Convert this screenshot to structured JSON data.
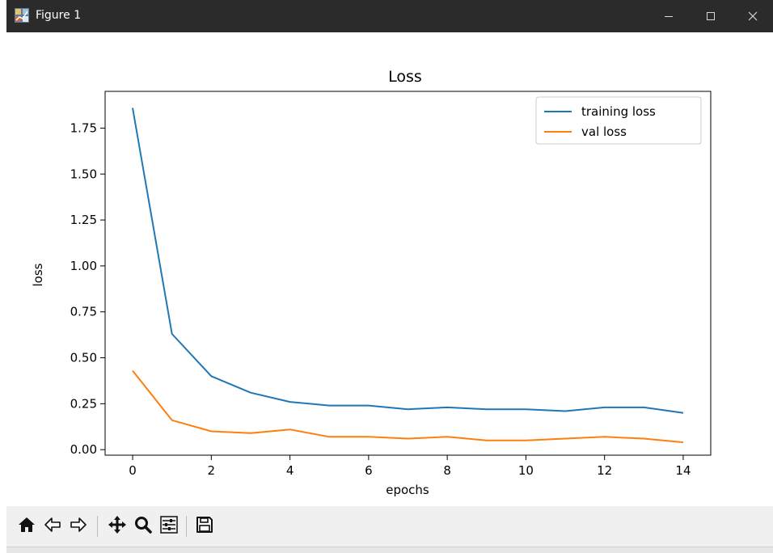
{
  "window": {
    "title": "Figure 1",
    "icon": "matplotlib-figure-icon",
    "controls": [
      "minimize-icon",
      "maximize-icon",
      "close-icon"
    ],
    "titlebar_color": "#2b2b2b"
  },
  "toolbar": {
    "buttons": [
      "home-icon",
      "back-icon",
      "forward-icon",
      "pan-icon",
      "zoom-icon",
      "configure-subplots-icon",
      "save-icon"
    ]
  },
  "chart_data": {
    "type": "line",
    "title": "Loss",
    "xlabel": "epochs",
    "ylabel": "loss",
    "xlim": [
      -0.7,
      14.7
    ],
    "ylim": [
      -0.03,
      1.95
    ],
    "xticks": [
      0,
      2,
      4,
      6,
      8,
      10,
      12,
      14
    ],
    "xtick_labels": [
      "0",
      "2",
      "4",
      "6",
      "8",
      "10",
      "12",
      "14"
    ],
    "yticks": [
      0.0,
      0.25,
      0.5,
      0.75,
      1.0,
      1.25,
      1.5,
      1.75
    ],
    "ytick_labels": [
      "0.00",
      "0.25",
      "0.50",
      "0.75",
      "1.00",
      "1.25",
      "1.50",
      "1.75"
    ],
    "grid": false,
    "legend": "top-right",
    "x": [
      0,
      1,
      2,
      3,
      4,
      5,
      6,
      7,
      8,
      9,
      10,
      11,
      12,
      13,
      14
    ],
    "series": [
      {
        "name": "training loss",
        "color": "#1f77b4",
        "values": [
          1.86,
          0.63,
          0.4,
          0.31,
          0.26,
          0.24,
          0.24,
          0.22,
          0.23,
          0.22,
          0.22,
          0.21,
          0.23,
          0.23,
          0.2
        ]
      },
      {
        "name": "val loss",
        "color": "#ff7f0e",
        "values": [
          0.43,
          0.16,
          0.1,
          0.09,
          0.11,
          0.07,
          0.07,
          0.06,
          0.07,
          0.05,
          0.05,
          0.06,
          0.07,
          0.06,
          0.04
        ]
      }
    ]
  }
}
